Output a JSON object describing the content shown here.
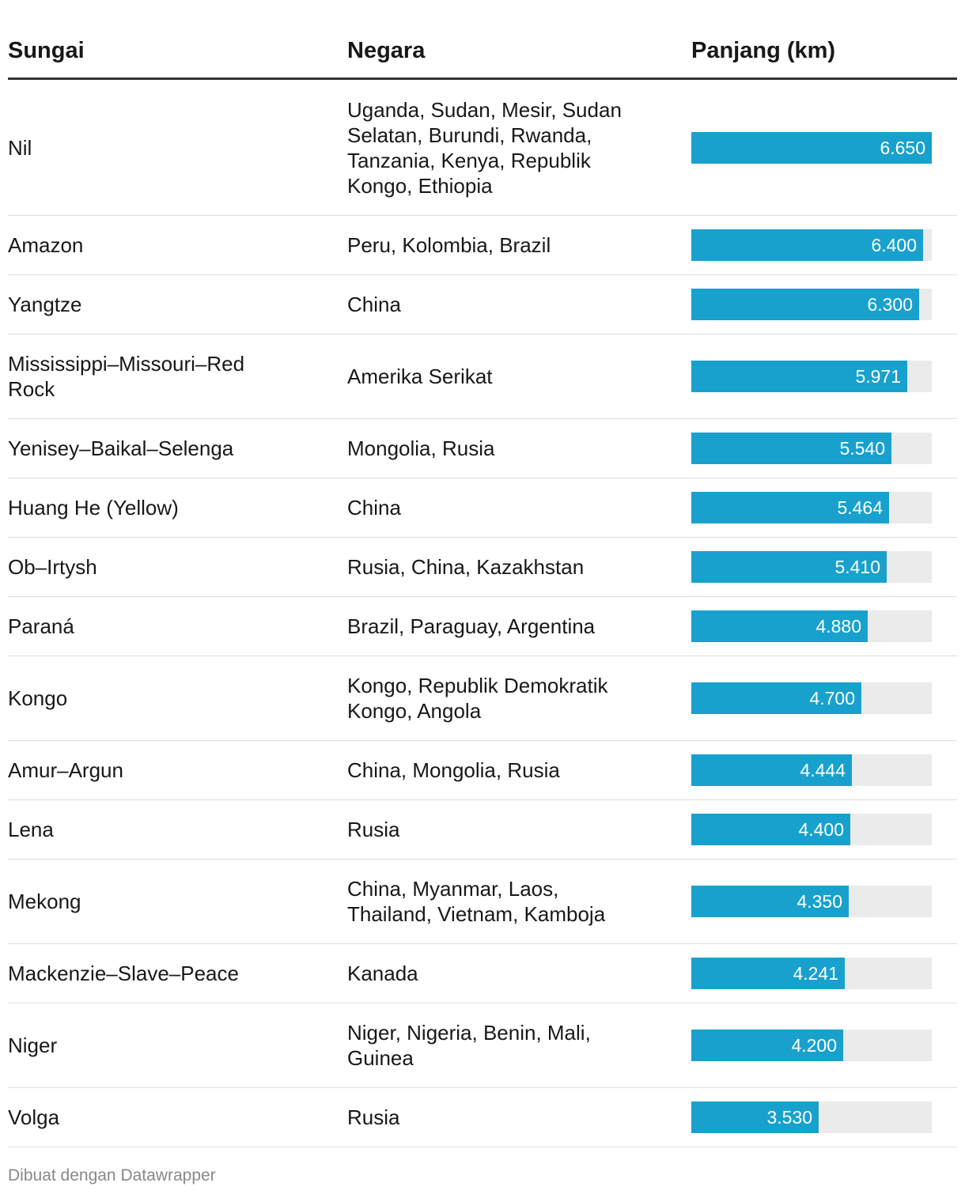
{
  "header": {
    "col1": "Sungai",
    "col2": "Negara",
    "col3": "Panjang (km)"
  },
  "rows": [
    {
      "river": "Nil",
      "countries": "Uganda, Sudan, Mesir, Sudan Selatan, Burundi, Rwanda, Tanzania, Kenya, Republik Kongo, Ethiopia",
      "length": 6650,
      "length_label": "6.650"
    },
    {
      "river": "Amazon",
      "countries": "Peru, Kolombia, Brazil",
      "length": 6400,
      "length_label": "6.400"
    },
    {
      "river": "Yangtze",
      "countries": "China",
      "length": 6300,
      "length_label": "6.300"
    },
    {
      "river": "Mississippi–Missouri–Red Rock",
      "countries": "Amerika Serikat",
      "length": 5971,
      "length_label": "5.971"
    },
    {
      "river": "Yenisey–Baikal–Selenga",
      "countries": "Mongolia, Rusia",
      "length": 5540,
      "length_label": "5.540"
    },
    {
      "river": "Huang He (Yellow)",
      "countries": "China",
      "length": 5464,
      "length_label": "5.464"
    },
    {
      "river": "Ob–Irtysh",
      "countries": "Rusia, China, Kazakhstan",
      "length": 5410,
      "length_label": "5.410"
    },
    {
      "river": "Paraná",
      "countries": "Brazil, Paraguay, Argentina",
      "length": 4880,
      "length_label": "4.880"
    },
    {
      "river": "Kongo",
      "countries": "Kongo, Republik Demokratik Kongo, Angola",
      "length": 4700,
      "length_label": "4.700"
    },
    {
      "river": "Amur–Argun",
      "countries": "China, Mongolia, Rusia",
      "length": 4444,
      "length_label": "4.444"
    },
    {
      "river": "Lena",
      "countries": "Rusia",
      "length": 4400,
      "length_label": "4.400"
    },
    {
      "river": "Mekong",
      "countries": "China, Myanmar, Laos, Thailand, Vietnam, Kamboja",
      "length": 4350,
      "length_label": "4.350"
    },
    {
      "river": "Mackenzie–Slave–Peace",
      "countries": "Kanada",
      "length": 4241,
      "length_label": "4.241"
    },
    {
      "river": "Niger",
      "countries": "Niger, Nigeria, Benin, Mali, Guinea",
      "length": 4200,
      "length_label": "4.200"
    },
    {
      "river": "Volga",
      "countries": "Rusia",
      "length": 3530,
      "length_label": "3.530"
    }
  ],
  "footer": "Dibuat dengan Datawrapper",
  "colors": {
    "bar": "#18a1cd",
    "track": "#ebebeb",
    "rule": "#333333"
  },
  "chart_data": {
    "type": "table",
    "columns": [
      "Sungai",
      "Negara",
      "Panjang (km)"
    ],
    "bar_column": "Panjang (km)",
    "xlim": [
      0,
      6650
    ],
    "categories": [
      "Nil",
      "Amazon",
      "Yangtze",
      "Mississippi–Missouri–Red Rock",
      "Yenisey–Baikal–Selenga",
      "Huang He (Yellow)",
      "Ob–Irtysh",
      "Paraná",
      "Kongo",
      "Amur–Argun",
      "Lena",
      "Mekong",
      "Mackenzie–Slave–Peace",
      "Niger",
      "Volga"
    ],
    "values": [
      6650,
      6400,
      6300,
      5971,
      5540,
      5464,
      5410,
      4880,
      4700,
      4444,
      4400,
      4350,
      4241,
      4200,
      3530
    ]
  }
}
